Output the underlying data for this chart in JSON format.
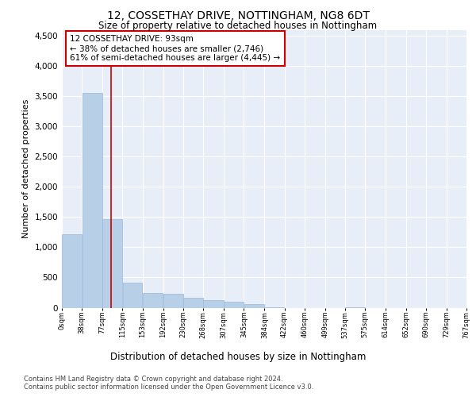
{
  "title": "12, COSSETHAY DRIVE, NOTTINGHAM, NG8 6DT",
  "subtitle": "Size of property relative to detached houses in Nottingham",
  "xlabel": "Distribution of detached houses by size in Nottingham",
  "ylabel": "Number of detached properties",
  "footnote1": "Contains HM Land Registry data © Crown copyright and database right 2024.",
  "footnote2": "Contains public sector information licensed under the Open Government Licence v3.0.",
  "annotation_line1": "12 COSSETHAY DRIVE: 93sqm",
  "annotation_line2": "← 38% of detached houses are smaller (2,746)",
  "annotation_line3": "61% of semi-detached houses are larger (4,445) →",
  "property_size": 93,
  "bin_edges": [
    0,
    38,
    77,
    115,
    153,
    192,
    230,
    268,
    307,
    345,
    384,
    422,
    460,
    499,
    537,
    575,
    614,
    652,
    690,
    729,
    767
  ],
  "bar_heights": [
    1220,
    3550,
    1470,
    410,
    240,
    230,
    160,
    120,
    95,
    60,
    10,
    0,
    0,
    0,
    8,
    0,
    0,
    0,
    0,
    0
  ],
  "bar_color": "#b8cfe8",
  "bar_edge_color": "#9ab8d8",
  "line_color": "#cc0000",
  "background_color": "#e8eef8",
  "ylim": [
    0,
    4600
  ],
  "ylim_display": [
    0,
    4500
  ],
  "yticks": [
    0,
    500,
    1000,
    1500,
    2000,
    2500,
    3000,
    3500,
    4000,
    4500
  ],
  "grid_color": "#ffffff",
  "annotation_box_color": "#cc0000",
  "title_fontsize": 10,
  "subtitle_fontsize": 8.5,
  "ylabel_fontsize": 8,
  "xlabel_fontsize": 8.5,
  "footnote_fontsize": 6,
  "annot_fontsize": 7.5
}
